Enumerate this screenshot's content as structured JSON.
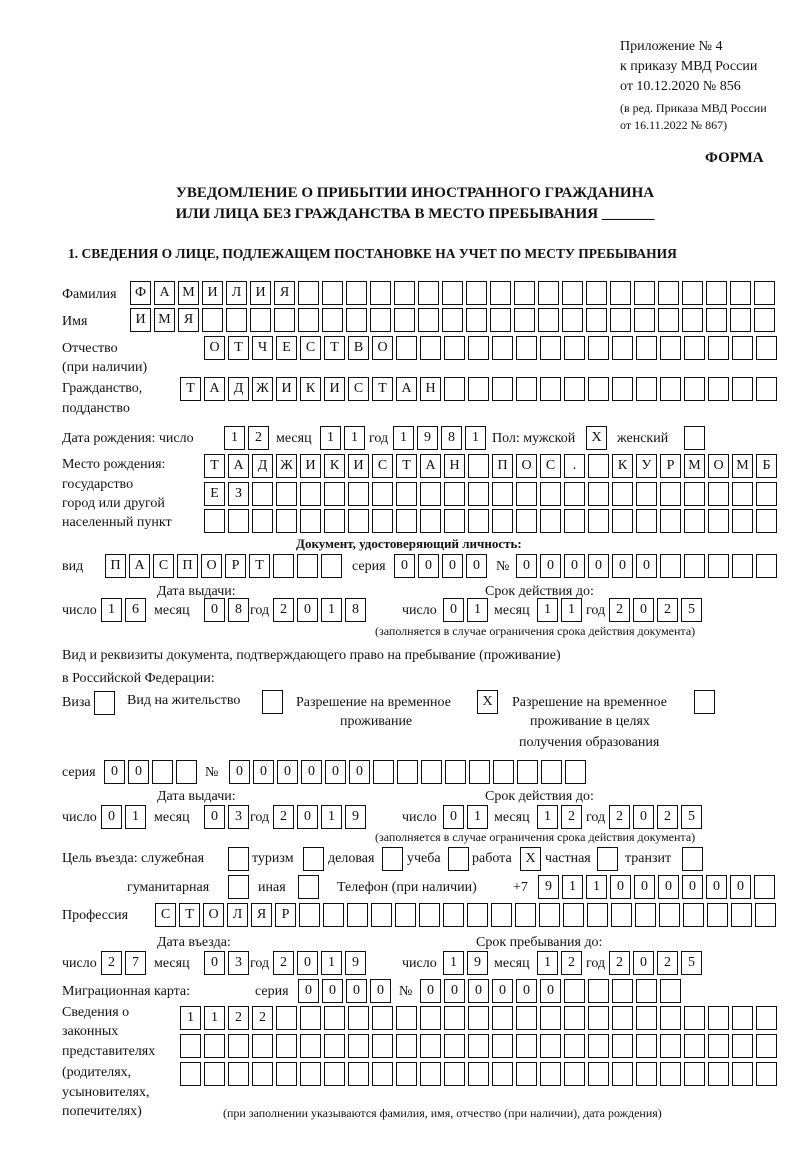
{
  "header": {
    "appendix": "Приложение № 4",
    "order": "к приказу МВД России",
    "order_date": "от 10.12.2020 № 856",
    "edition1": "(в ред. Приказа МВД России",
    "edition2": "от 16.11.2022 № 867)",
    "form": "ФОРМА",
    "title1": "УВЕДОМЛЕНИЕ О ПРИБЫТИИ ИНОСТРАННОГО ГРАЖДАНИНА",
    "title2": "ИЛИ ЛИЦА БЕЗ ГРАЖДАНСТВА В МЕСТО ПРЕБЫВАНИЯ _______"
  },
  "section1": {
    "heading": "1. СВЕДЕНИЯ О ЛИЦЕ, ПОДЛЕЖАЩЕМ ПОСТАНОВКЕ НА УЧЕТ ПО МЕСТУ ПРЕБЫВАНИЯ",
    "surname_label": "Фамилия",
    "surname": "ФАМИЛИЯ",
    "name_label": "Имя",
    "name": "ИМЯ",
    "patronymic_label1": "Отчество",
    "patronymic_label2": "(при наличии)",
    "patronymic": "ОТЧЕСТВО",
    "citizenship_label1": "Гражданство,",
    "citizenship_label2": "подданство",
    "citizenship": "ТАДЖИКИСТАН",
    "birth": {
      "label": "Дата рождения:   число",
      "month_label": "месяц",
      "year_label": "год",
      "day": "12",
      "month": "11",
      "year": "1981",
      "sex_label": "Пол: мужской",
      "male": "X",
      "female_label": "женский",
      "female": ""
    },
    "birthplace": {
      "label1": "Место рождения:",
      "label2": "государство",
      "label3": "город или другой",
      "label4": "населенный пункт",
      "row1": "ТАДЖИКИСТАН ПОС. КУРМОМБ",
      "row2": "ЕЗ",
      "row3": ""
    },
    "id_doc": {
      "heading": "Документ, удостоверяющий личность:",
      "kind_label": "вид",
      "kind": "ПАСПОРТ",
      "series_label": "серия",
      "series": "0000",
      "number_label": "№",
      "number": "000000",
      "issue_label": "Дата выдачи:",
      "valid_label": "Срок действия до:",
      "day_label": "число",
      "month_label": "месяц",
      "year_label": "год",
      "issue_day": "16",
      "issue_month": "08",
      "issue_year": "2018",
      "valid_day": "01",
      "valid_month": "11",
      "valid_year": "2025",
      "note": "(заполняется в случае ограничения срока действия документа)"
    },
    "stay_doc": {
      "label1": "Вид и реквизиты документа, подтверждающего право на пребывание (проживание)",
      "label2": "в Российской Федерации:",
      "visa_label": "Виза",
      "visa": "",
      "residence_label": "Вид на жительство",
      "residence": "",
      "trp_label1": "Разрешение на временное",
      "trp_label2": "проживание",
      "trp": "X",
      "trp_edu_label1": "Разрешение на временное",
      "trp_edu_label2": "проживание в целях",
      "trp_edu_label3": "получения образования",
      "trp_edu": "",
      "series_label": "серия",
      "series": "00",
      "number_label": "№",
      "number": "000000",
      "issue_label": "Дата выдачи:",
      "valid_label": "Срок действия до:",
      "day_label": "число",
      "month_label": "месяц",
      "year_label": "год",
      "issue_day": "01",
      "issue_month": "03",
      "issue_year": "2019",
      "valid_day": "01",
      "valid_month": "12",
      "valid_year": "2025",
      "note": "(заполняется в случае ограничения срока действия документа)"
    },
    "purpose": {
      "label": "Цель въезда: служебная",
      "official": "",
      "tourism_label": "туризм",
      "tourism": "",
      "business_label": "деловая",
      "business": "",
      "study_label": "учеба",
      "study": "",
      "work_label": "работа",
      "work": "X",
      "private_label": "частная",
      "private": "",
      "transit_label": "транзит",
      "transit": "",
      "humanitarian_label": "гуманитарная",
      "humanitarian": "",
      "other_label": "иная",
      "other": "",
      "phone_label": "Телефон (при наличии)",
      "phone_prefix": "+7",
      "phone": "911000000"
    },
    "profession_label": "Профессия",
    "profession": "СТОЛЯР",
    "entry": {
      "entry_label": "Дата въезда:",
      "stay_label": "Срок пребывания до:",
      "day_label": "число",
      "month_label": "месяц",
      "year_label": "год",
      "entry_day": "27",
      "entry_month": "03",
      "entry_year": "2019",
      "stay_day": "19",
      "stay_month": "12",
      "stay_year": "2025"
    },
    "migration_card": {
      "label": "Миграционная карта:",
      "series_label": "серия",
      "series": "0000",
      "number_label": "№",
      "number": "000000"
    },
    "representatives": {
      "label1": "Сведения о",
      "label2": "законных",
      "label3": "представителях",
      "label4": "(родителях,",
      "label5": "усыновителях,",
      "label6": "попечителях)",
      "row1": "1122",
      "row2": "",
      "row3": "",
      "note": "(при заполнении указываются фамилия, имя, отчество (при наличии), дата рождения)"
    }
  }
}
